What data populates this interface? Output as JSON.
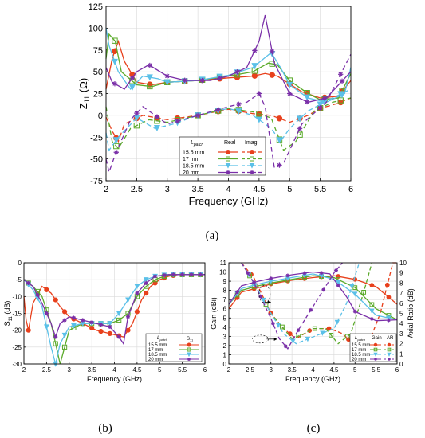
{
  "chart_data": [
    {
      "id": "a",
      "panel_label": "(a)",
      "type": "line",
      "xlabel": "Frequency (GHz)",
      "ylabel": "Z",
      "ylabel_sub": "11",
      "ylabel_unit": "(Ω)",
      "xlim": [
        2,
        6
      ],
      "ylim": [
        -75,
        125
      ],
      "xticks": [
        "2",
        "2.5",
        "3",
        "3.5",
        "4",
        "4.5",
        "5",
        "5.5",
        "6"
      ],
      "yticks": [
        "-75",
        "-50",
        "-25",
        "0",
        "25",
        "50",
        "75",
        "100",
        "125"
      ],
      "grid": true,
      "legend": {
        "position": "bottom-center",
        "title_prefix": "L",
        "title_sub": "patch",
        "col_real": "Real",
        "col_imag": "Imag",
        "entries": [
          "15.5 mm",
          "17 mm",
          "18.5 mm",
          "20 mm"
        ]
      },
      "series": [
        {
          "name": "15.5 mm",
          "color": "#e8401c",
          "marker": "circle",
          "real_x": [
            2,
            2.1,
            2.2,
            2.3,
            2.5,
            2.75,
            3,
            3.5,
            4,
            4.4,
            4.6,
            4.8,
            5,
            5.2,
            5.5,
            5.8,
            6
          ],
          "real_y": [
            30,
            65,
            85,
            62,
            38,
            35,
            38,
            40,
            43,
            45,
            48,
            45,
            36,
            27,
            20,
            22,
            40
          ],
          "imag_x": [
            2,
            2.1,
            2.2,
            2.3,
            2.6,
            3,
            3.5,
            4,
            4.4,
            4.7,
            5,
            5.3,
            5.5,
            5.8,
            6
          ],
          "imag_y": [
            -2,
            -18,
            -30,
            -10,
            0,
            -5,
            0,
            7,
            2,
            0,
            -8,
            0,
            8,
            14,
            20
          ]
        },
        {
          "name": "17 mm",
          "color": "#5aaa2a",
          "marker": "square",
          "real_x": [
            2,
            2.05,
            2.15,
            2.25,
            2.5,
            2.75,
            3,
            3.5,
            4,
            4.4,
            4.65,
            4.8,
            5,
            5.3,
            5.5,
            5.8,
            6
          ],
          "real_y": [
            65,
            93,
            85,
            50,
            35,
            33,
            38,
            40,
            45,
            50,
            60,
            58,
            40,
            25,
            18,
            20,
            48
          ],
          "imag_x": [
            2,
            2.1,
            2.2,
            2.4,
            2.7,
            3,
            3.5,
            4,
            4.4,
            4.7,
            4.9,
            5.1,
            5.4,
            5.7,
            6
          ],
          "imag_y": [
            10,
            -30,
            -38,
            -15,
            -5,
            -8,
            0,
            8,
            4,
            -3,
            -40,
            -30,
            5,
            15,
            20
          ]
        },
        {
          "name": "18.5 mm",
          "color": "#5bc0e8",
          "marker": "triangle",
          "real_x": [
            2,
            2.05,
            2.2,
            2.4,
            2.6,
            2.85,
            3,
            3.5,
            4,
            4.4,
            4.7,
            4.85,
            5,
            5.3,
            5.6,
            5.9,
            6
          ],
          "real_y": [
            100,
            80,
            50,
            30,
            45,
            42,
            38,
            40,
            46,
            55,
            72,
            55,
            35,
            20,
            15,
            25,
            55
          ],
          "imag_x": [
            2,
            2.05,
            2.2,
            2.5,
            2.8,
            3.1,
            3.5,
            4,
            4.4,
            4.7,
            4.85,
            5,
            5.3,
            5.7,
            6
          ],
          "imag_y": [
            -20,
            -40,
            -25,
            -3,
            -15,
            -10,
            0,
            8,
            0,
            -15,
            -30,
            -15,
            5,
            20,
            30
          ]
        },
        {
          "name": "20 mm",
          "color": "#7a2fa8",
          "marker": "star",
          "real_x": [
            2,
            2.1,
            2.3,
            2.5,
            2.7,
            3,
            3.3,
            3.7,
            4,
            4.3,
            4.5,
            4.6,
            4.75,
            5,
            5.3,
            5.6,
            6
          ],
          "real_y": [
            55,
            38,
            30,
            50,
            58,
            45,
            40,
            40,
            45,
            55,
            85,
            115,
            60,
            25,
            15,
            20,
            50
          ],
          "imag_x": [
            2,
            2.05,
            2.15,
            2.4,
            2.6,
            3,
            3.5,
            4,
            4.3,
            4.5,
            4.6,
            4.75,
            4.9,
            5.2,
            5.6,
            6
          ],
          "imag_y": [
            -50,
            -65,
            -45,
            -5,
            10,
            -10,
            0,
            10,
            15,
            25,
            10,
            -60,
            -55,
            -10,
            15,
            70
          ]
        }
      ]
    },
    {
      "id": "b",
      "panel_label": "(b)",
      "type": "line",
      "xlabel": "Frequency (GHz)",
      "ylabel": "S",
      "ylabel_sub": "11",
      "ylabel_unit": "(dB)",
      "xlim": [
        2,
        6
      ],
      "ylim": [
        -30,
        0
      ],
      "xticks": [
        "2",
        "2.5",
        "3",
        "3.5",
        "4",
        "4.5",
        "5",
        "5.5",
        "6"
      ],
      "yticks": [
        "-30",
        "-25",
        "-20",
        "-15",
        "-10",
        "-5",
        "0"
      ],
      "grid": true,
      "legend": {
        "position": "bottom-right",
        "title_prefix": "L",
        "title_sub": "patch",
        "col": "S",
        "col_sub": "11",
        "entries": [
          "15.5 mm",
          "17 mm",
          "18.5 mm",
          "20 mm"
        ]
      },
      "series": [
        {
          "name": "15.5 mm",
          "color": "#e8401c",
          "marker": "circle",
          "x": [
            2,
            2.05,
            2.1,
            2.2,
            2.4,
            2.6,
            2.8,
            3,
            3.3,
            3.6,
            3.9,
            4.2,
            4.4,
            4.6,
            4.8,
            5,
            5.2,
            5.4,
            5.6,
            5.8,
            6
          ],
          "y": [
            -10,
            -17,
            -20,
            -12,
            -7,
            -9,
            -13,
            -16,
            -18,
            -20,
            -21,
            -22,
            -18,
            -11,
            -7,
            -5,
            -4,
            -3.5,
            -3.5,
            -3.5,
            -3.5
          ]
        },
        {
          "name": "17 mm",
          "color": "#5aaa2a",
          "marker": "square",
          "x": [
            2,
            2.2,
            2.4,
            2.6,
            2.8,
            2.9,
            3,
            3.3,
            3.6,
            3.9,
            4.1,
            4.3,
            4.5,
            4.7,
            4.9,
            5.1,
            5.3,
            5.6,
            6
          ],
          "y": [
            -5,
            -7,
            -10,
            -18,
            -30,
            -25,
            -20,
            -18,
            -18,
            -18,
            -17,
            -15,
            -10,
            -7,
            -5,
            -4,
            -3.5,
            -3.5,
            -3.5
          ]
        },
        {
          "name": "18.5 mm",
          "color": "#5bc0e8",
          "marker": "triangle",
          "x": [
            2,
            2.2,
            2.4,
            2.6,
            2.7,
            2.8,
            3,
            3.3,
            3.6,
            3.9,
            4.1,
            4.3,
            4.5,
            4.7,
            4.9,
            5.2,
            5.6,
            6
          ],
          "y": [
            -5,
            -8,
            -13,
            -25,
            -30,
            -24,
            -19,
            -18,
            -18,
            -18,
            -15,
            -11,
            -7,
            -5,
            -4,
            -3.5,
            -3.5,
            -3.5
          ]
        },
        {
          "name": "20 mm",
          "color": "#7a2fa8",
          "marker": "star",
          "x": [
            2,
            2.2,
            2.4,
            2.6,
            2.7,
            2.8,
            3,
            3.3,
            3.6,
            3.9,
            4.1,
            4.2,
            4.3,
            4.5,
            4.7,
            4.9,
            5.2,
            5.6,
            6
          ],
          "y": [
            -5,
            -7,
            -12,
            -18,
            -22,
            -18,
            -16,
            -17,
            -18,
            -19,
            -22,
            -24,
            -16,
            -9,
            -6,
            -4,
            -3.5,
            -3.5,
            -3.5
          ]
        }
      ]
    },
    {
      "id": "c",
      "panel_label": "(c)",
      "type": "line",
      "xlabel": "Frequency (GHz)",
      "ylabel_left": "Gain (dBi)",
      "ylabel_right": "Axial Ratio (dB)",
      "xlim": [
        2,
        6
      ],
      "ylim_left": [
        0,
        11
      ],
      "ylim_right": [
        0,
        10
      ],
      "xticks": [
        "2",
        "2.5",
        "3",
        "3.5",
        "4",
        "4.5",
        "5",
        "5.5",
        "6"
      ],
      "yticks_left": [
        "0",
        "1",
        "2",
        "3",
        "4",
        "5",
        "6",
        "7",
        "8",
        "9",
        "10",
        "11"
      ],
      "yticks_right": [
        "0",
        "1",
        "2",
        "3",
        "4",
        "5",
        "6",
        "7",
        "8",
        "9",
        "10"
      ],
      "grid": true,
      "legend": {
        "position": "bottom-right",
        "title_prefix": "L",
        "title_sub": "patch",
        "col_gain": "Gain",
        "col_ar": "AR",
        "entries": [
          "15.5 mm",
          "17 mm",
          "18.5 mm",
          "20 mm"
        ]
      },
      "series": [
        {
          "name": "15.5 mm",
          "color": "#e8401c",
          "marker": "circle",
          "gain_x": [
            2,
            2.3,
            2.7,
            3,
            3.5,
            4,
            4.5,
            5,
            5.5,
            6
          ],
          "gain_y": [
            6,
            7.8,
            8.3,
            8.7,
            9.1,
            9.4,
            9.6,
            9.2,
            8.4,
            6.5
          ],
          "ar_x": [
            2.3,
            2.6,
            3,
            3.3,
            3.6,
            4,
            4.4,
            4.7,
            5,
            5.3,
            5.6,
            5.9,
            6
          ],
          "ar_y": [
            10,
            8.5,
            5,
            3.5,
            2.5,
            3.5,
            3.5,
            3,
            1.8,
            1.8,
            5,
            10,
            10
          ]
        },
        {
          "name": "17 mm",
          "color": "#5aaa2a",
          "marker": "square",
          "gain_x": [
            2,
            2.3,
            2.7,
            3,
            3.5,
            4,
            4.5,
            5,
            5.5,
            6
          ],
          "gain_y": [
            6.5,
            8,
            8.5,
            8.8,
            9.2,
            9.6,
            9.4,
            8.3,
            6,
            4.8
          ],
          "ar_x": [
            2.3,
            2.6,
            3,
            3.3,
            3.5,
            3.8,
            4,
            4.3,
            4.6,
            4.9,
            5.2,
            5.4
          ],
          "ar_y": [
            10,
            8,
            5,
            3.5,
            2.5,
            3,
            3.5,
            3.5,
            2,
            3,
            7,
            10
          ]
        },
        {
          "name": "18.5 mm",
          "color": "#5bc0e8",
          "marker": "triangle",
          "gain_x": [
            2,
            2.3,
            2.7,
            3,
            3.5,
            4,
            4.5,
            5,
            5.5,
            6
          ],
          "gain_y": [
            6.5,
            8.2,
            8.7,
            9,
            9.4,
            9.8,
            9.2,
            7.6,
            5.3,
            4.8
          ],
          "ar_x": [
            2.3,
            2.6,
            3,
            3.3,
            3.6,
            3.9,
            4.2,
            4.5,
            4.8,
            5.1
          ],
          "ar_y": [
            10,
            8,
            5,
            3,
            2,
            2.5,
            3,
            3.5,
            6,
            10
          ]
        },
        {
          "name": "20 mm",
          "color": "#7a2fa8",
          "marker": "star",
          "gain_x": [
            2,
            2.3,
            2.7,
            3,
            3.5,
            4,
            4.4,
            4.8,
            5,
            5.5,
            6
          ],
          "gain_y": [
            6.5,
            8.5,
            9,
            9.3,
            9.7,
            10,
            9.8,
            7.3,
            5.7,
            4.7,
            4.8
          ],
          "ar_x": [
            2.3,
            2.6,
            3,
            3.2,
            3.4,
            3.6,
            3.9,
            4.2,
            4.5,
            4.7
          ],
          "ar_y": [
            10,
            8,
            4.5,
            2.5,
            1.5,
            3,
            5,
            7,
            9,
            10
          ]
        }
      ]
    }
  ]
}
